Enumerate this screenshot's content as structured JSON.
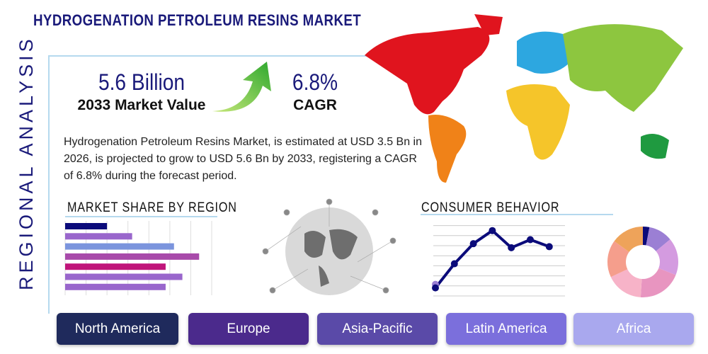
{
  "title": "HYDROGENATION PETROLEUM RESINS MARKET",
  "side_label": "REGIONAL ANALYSIS",
  "stats": {
    "value": "5.6 Billion",
    "value_label": "2033 Market Value",
    "cagr": "6.8%",
    "cagr_label": "CAGR"
  },
  "description": "Hydrogenation Petroleum Resins Market, is estimated at USD 3.5 Bn in 2026, is projected to grow to USD 5.6 Bn by 2033, registering a CAGR of 6.8% during the forecast period.",
  "sections": {
    "market_share": "MARKET SHARE BY REGION",
    "consumer": "CONSUMER BEHAVIOR"
  },
  "chart_data": [
    {
      "type": "bar",
      "orientation": "horizontal",
      "values": [
        2,
        3.2,
        5.2,
        6.4,
        4.8,
        5.6,
        4.8
      ],
      "colors": [
        "#0b0b7a",
        "#9966cc",
        "#7b94dd",
        "#a84aaa",
        "#c0157a",
        "#9966cc",
        "#9966cc"
      ],
      "xlim": [
        0,
        7
      ],
      "grid": true
    },
    {
      "type": "line",
      "values": [
        0.8,
        3.2,
        5.2,
        6.5,
        4.8,
        5.6,
        4.9
      ],
      "ylim": [
        0,
        7
      ],
      "color": "#0b0b7a",
      "grid": true
    },
    {
      "type": "pie",
      "donut": true,
      "values": [
        3,
        11,
        17,
        20,
        17,
        17,
        15
      ],
      "colors": [
        "#0b0b7a",
        "#9b7fd4",
        "#d49be0",
        "#e895c0",
        "#f7b3c8",
        "#f59e8c",
        "#eea35a"
      ]
    }
  ],
  "regions": [
    {
      "label": "North America",
      "color": "#1f2a5c"
    },
    {
      "label": "Europe",
      "color": "#4b2a8c"
    },
    {
      "label": "Asia-Pacific",
      "color": "#5a4aa8"
    },
    {
      "label": "Latin America",
      "color": "#7b6fdc"
    },
    {
      "label": "Africa",
      "color": "#a9a8ee"
    }
  ]
}
